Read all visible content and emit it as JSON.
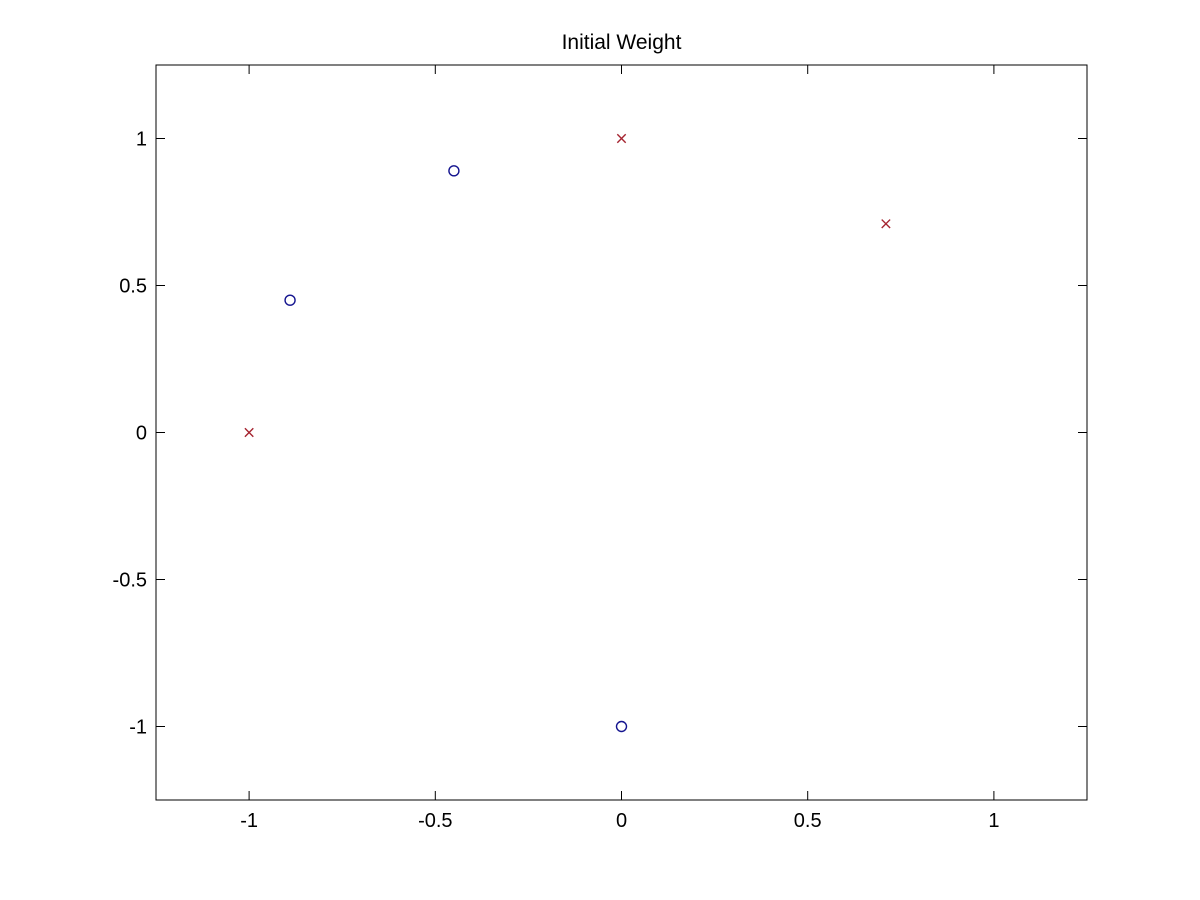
{
  "window": {
    "background": "#ffffff"
  },
  "chart_data": {
    "type": "scatter",
    "title": "Initial Weight",
    "xlabel": "",
    "ylabel": "",
    "xlim": [
      -1.25,
      1.25
    ],
    "ylim": [
      -1.25,
      1.25
    ],
    "xticks": {
      "values": [
        -1,
        -0.5,
        0,
        0.5,
        1
      ],
      "labels": [
        "-1",
        "-0.5",
        "0",
        "0.5",
        "1"
      ]
    },
    "yticks": {
      "values": [
        -1,
        -0.5,
        0,
        0.5,
        1
      ],
      "labels": [
        "-1",
        "-0.5",
        "0",
        "0.5",
        "1"
      ]
    },
    "grid": false,
    "box": true,
    "legend_position": "none",
    "axis_color": "#000000",
    "background_color": "#ffffff",
    "series": [
      {
        "name": "circle-markers",
        "marker": "o",
        "color": "#14148F",
        "points": [
          [
            -0.89,
            0.45
          ],
          [
            -0.45,
            0.89
          ],
          [
            0,
            -1
          ]
        ]
      },
      {
        "name": "cross-markers",
        "marker": "x",
        "color": "#A52430",
        "points": [
          [
            -1,
            0
          ],
          [
            0,
            1
          ],
          [
            0.71,
            0.71
          ]
        ]
      }
    ]
  }
}
